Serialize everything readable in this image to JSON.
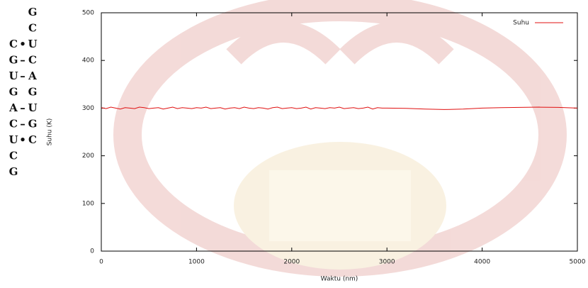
{
  "chart_data": {
    "type": "line",
    "xlabel": "Waktu (nm)",
    "ylabel": "Suhu (K)",
    "x": [
      0,
      50,
      100,
      150,
      200,
      250,
      300,
      350,
      400,
      450,
      500,
      550,
      600,
      650,
      700,
      750,
      800,
      850,
      900,
      950,
      1000,
      1050,
      1100,
      1150,
      1200,
      1250,
      1300,
      1350,
      1400,
      1450,
      1500,
      1550,
      1600,
      1650,
      1700,
      1750,
      1800,
      1850,
      1900,
      1950,
      2000,
      2050,
      2100,
      2150,
      2200,
      2250,
      2300,
      2350,
      2400,
      2450,
      2500,
      2550,
      2600,
      2650,
      2700,
      2750,
      2800,
      2850,
      2900,
      2950,
      3000,
      3200,
      3400,
      3600,
      3800,
      4000,
      4200,
      4400,
      4600,
      4800,
      5000
    ],
    "series": [
      {
        "name": "Suhu",
        "color": "#e01010",
        "values": [
          301,
          299,
          302,
          300,
          298,
          301,
          300,
          299,
          302,
          301,
          299,
          300,
          301,
          298,
          300,
          302,
          299,
          301,
          300,
          299,
          301,
          300,
          302,
          299,
          300,
          301,
          298,
          300,
          301,
          299,
          302,
          300,
          299,
          301,
          300,
          298,
          301,
          302,
          299,
          300,
          301,
          299,
          300,
          302,
          298,
          301,
          300,
          299,
          301,
          300,
          302,
          299,
          300,
          301,
          299,
          300,
          302,
          298,
          301,
          300,
          300,
          299.5,
          298,
          297,
          298,
          300,
          301,
          301.5,
          302,
          301.5,
          300
        ]
      }
    ],
    "xlim": [
      0,
      5000
    ],
    "xticks": [
      0,
      1000,
      2000,
      3000,
      4000,
      5000
    ],
    "ylim": [
      0,
      500
    ],
    "yticks": [
      0,
      100,
      200,
      300,
      400,
      500
    ],
    "grid": false,
    "legend": "top-right"
  },
  "rna_structure": {
    "rows": [
      {
        "right": "G"
      },
      {
        "right": "C"
      },
      {
        "left": "C",
        "bond": "•",
        "right": "U"
      },
      {
        "left": "G",
        "bond": "–",
        "right": "C"
      },
      {
        "left": "U",
        "bond": "–",
        "right": "A"
      },
      {
        "left": "G",
        "right": "G"
      },
      {
        "left": "A",
        "bond": "–",
        "right": "U"
      },
      {
        "left": "C",
        "bond": "–",
        "right": "G"
      },
      {
        "left": "U",
        "bond": "•",
        "right": "C"
      },
      {
        "left": "C"
      },
      {
        "left": "G"
      }
    ]
  }
}
